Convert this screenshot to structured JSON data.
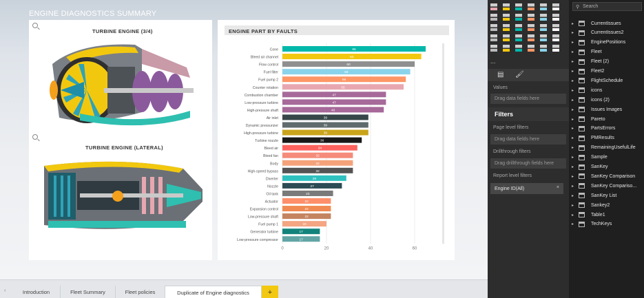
{
  "report": {
    "title": "ENGINE DIAGNOSTICS SUMMARY"
  },
  "left_visual": {
    "image1_title": "TURBINE ENGINE (3/4)",
    "image2_title": "TURBINE ENGINE (LATERAL)"
  },
  "chart_data": {
    "type": "bar",
    "orientation": "horizontal",
    "title": "ENGINE PART BY FAULTS",
    "xlim": [
      0,
      70
    ],
    "xticks": [
      0,
      20,
      40,
      60
    ],
    "categories": [
      "Cone",
      "Bleed air channel",
      "Flow control",
      "Fuel filter",
      "Fuel pump 2",
      "Counter rotation",
      "Combustion chamber",
      "Low-pressure turbine",
      "High-pressure shaft",
      "Air inlet",
      "Dynamic pressurizer",
      "High-pressure turbine",
      "Turbine nozzle",
      "Bleed air",
      "Bleed fan",
      "Body",
      "High-speed bypass",
      "Diverter",
      "Nozzle",
      "Oil tank",
      "Actuator",
      "Expansion control",
      "Low-pressure shaft",
      "Fuel pump 1",
      "Generator turbine",
      "Low-pressure compressor"
    ],
    "values": [
      65,
      63,
      60,
      58,
      56,
      55,
      47,
      47,
      46,
      39,
      39,
      39,
      36,
      34,
      32,
      32,
      32,
      29,
      27,
      23,
      22,
      22,
      22,
      20,
      17,
      17
    ],
    "colors": [
      "#01b8aa",
      "#f2c80f",
      "#8f8f8f",
      "#8ad4eb",
      "#fe9666",
      "#e8a7b0",
      "#a66999",
      "#a66999",
      "#a66999",
      "#374649",
      "#5f6b6d",
      "#c9a41b",
      "#181818",
      "#fd625e",
      "#f58b7a",
      "#f5a27a",
      "#535353",
      "#2fc0c0",
      "#2c4b54",
      "#7a7a7a",
      "#ff8f6b",
      "#f08a52",
      "#c4845f",
      "#f4a582",
      "#12847b",
      "#62a5a5"
    ]
  },
  "tabs": {
    "scroll_left": "‹",
    "items": [
      "Introduction",
      "Fleet Summary",
      "Fleet policies",
      "Duplicate of Engine diagnostics"
    ],
    "add": "+"
  },
  "viz_pane": {
    "more": "...",
    "values_label": "Values",
    "values_drop": "Drag data fields here",
    "filters_title": "Filters",
    "page_filters": "Page level filters",
    "page_drop": "Drag data fields here",
    "drillthrough": "Drillthrough filters",
    "drill_drop": "Drag drillthrough fields here",
    "report_filters": "Report level filters",
    "engine_filter": "Engine ID(All)",
    "close": "×"
  },
  "fields_pane": {
    "search_placeholder": "Search",
    "fields": [
      "CurrentIssues",
      "CurrentIssues2",
      "EnginePositions",
      "Fleet",
      "Fleet (2)",
      "Fleet2",
      "FlightSchedule",
      "icons",
      "icons (2)",
      "Issues Images",
      "Pareto",
      "PartsErrors",
      "PMResults",
      "RemainingUsefulLife",
      "Sample",
      "SanKey",
      "SanKey Comparison",
      "SanKey Compariso...",
      "SanKey List",
      "Sankey2",
      "Table1",
      "TechKeys"
    ]
  }
}
